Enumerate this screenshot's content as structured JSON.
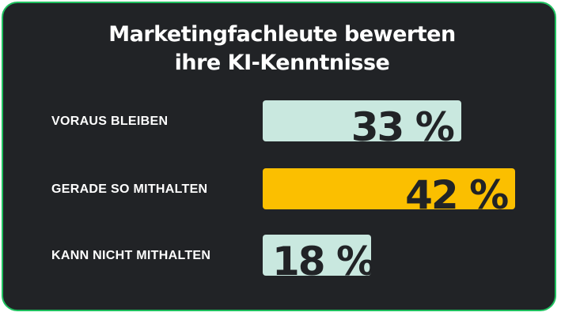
{
  "title_line1": "Marketingfachleute bewerten",
  "title_line2": "ihre KI-Kenntnisse",
  "colors": {
    "background": "#212326",
    "border": "#1fc05f",
    "bar_default": "#c9e8df",
    "bar_highlight": "#fbbf00",
    "text": "#ffffff"
  },
  "chart_data": {
    "type": "bar",
    "orientation": "horizontal",
    "title": "Marketingfachleute bewerten ihre KI-Kenntnisse",
    "categories": [
      "VORAUS BLEIBEN",
      "GERADE SO MITHALTEN",
      "KANN NICHT MITHALTEN"
    ],
    "values": [
      33,
      42,
      18
    ],
    "value_labels": [
      "33 %",
      "42 %",
      "18 %"
    ],
    "highlight_index": 1,
    "xlim": [
      0,
      100
    ],
    "grid": false
  }
}
